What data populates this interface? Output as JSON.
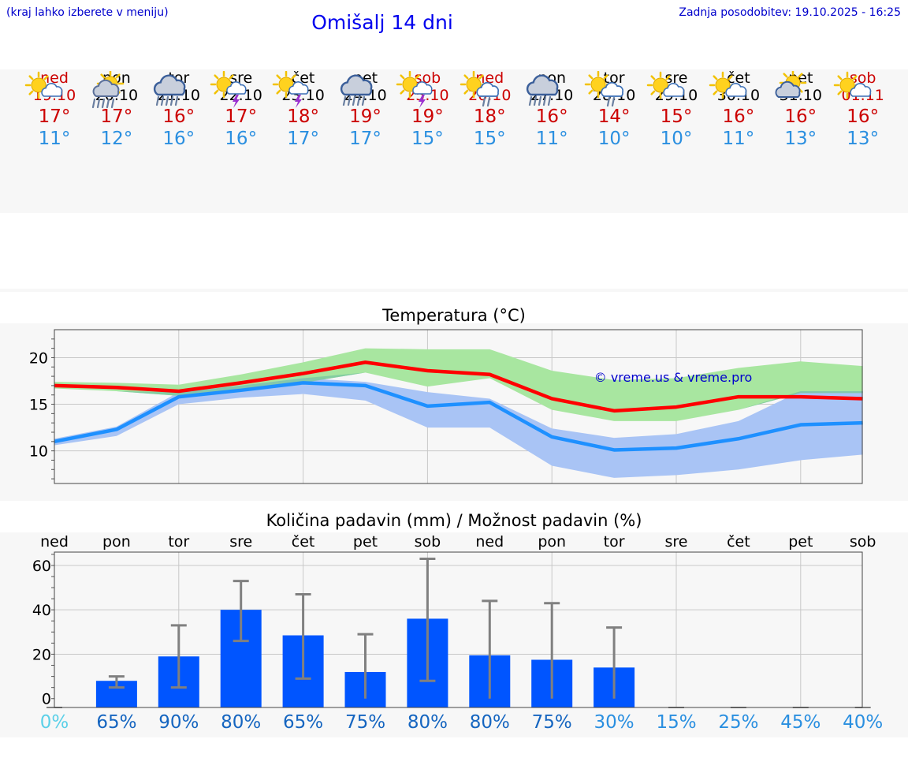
{
  "header": {
    "hint": "(kraj lahko izberete v meniju)",
    "title": "Omišalj 14 dni",
    "updated": "Zadnja posodobitev: 19.10.2025 - 16:25"
  },
  "forecast": [
    {
      "day": "ned",
      "date": "19.10",
      "weekend": true,
      "icon": "sun-cloud",
      "max": "17°",
      "min": "11°"
    },
    {
      "day": "pon",
      "date": "20.10",
      "weekend": false,
      "icon": "sun-cloud-rain",
      "max": "17°",
      "min": "12°"
    },
    {
      "day": "tor",
      "date": "21.10",
      "weekend": false,
      "icon": "cloud-rain",
      "max": "16°",
      "min": "16°"
    },
    {
      "day": "sre",
      "date": "22.10",
      "weekend": false,
      "icon": "sun-cloud-storm",
      "max": "17°",
      "min": "16°"
    },
    {
      "day": "čet",
      "date": "23.10",
      "weekend": false,
      "icon": "sun-cloud-storm",
      "max": "18°",
      "min": "17°"
    },
    {
      "day": "pet",
      "date": "24.10",
      "weekend": false,
      "icon": "cloud-rain",
      "max": "19°",
      "min": "17°"
    },
    {
      "day": "sob",
      "date": "25.10",
      "weekend": true,
      "icon": "sun-cloud-storm",
      "max": "19°",
      "min": "15°"
    },
    {
      "day": "ned",
      "date": "26.10",
      "weekend": true,
      "icon": "sun-cloud-light-rain",
      "max": "18°",
      "min": "15°"
    },
    {
      "day": "pon",
      "date": "27.10",
      "weekend": false,
      "icon": "cloud-rain",
      "max": "16°",
      "min": "11°"
    },
    {
      "day": "tor",
      "date": "28.10",
      "weekend": false,
      "icon": "sun-cloud-light-rain",
      "max": "14°",
      "min": "10°"
    },
    {
      "day": "sre",
      "date": "29.10",
      "weekend": false,
      "icon": "sun-cloud",
      "max": "15°",
      "min": "10°"
    },
    {
      "day": "čet",
      "date": "30.10",
      "weekend": false,
      "icon": "sun-cloud",
      "max": "16°",
      "min": "11°"
    },
    {
      "day": "pet",
      "date": "31.10",
      "weekend": false,
      "icon": "cloud-sun-behind",
      "max": "16°",
      "min": "13°"
    },
    {
      "day": "sob",
      "date": "01.11",
      "weekend": true,
      "icon": "sun-cloud",
      "max": "16°",
      "min": "13°"
    }
  ],
  "colors": {
    "max_line": "#ff0000",
    "min_line": "#1e90ff",
    "max_band": "#a8e6a0",
    "min_band": "#a9c4f5",
    "overlap_band": "#7cc8a0",
    "bar": "#0055ff",
    "error": "#808080",
    "pct_dark": "#1565c0",
    "pct_mid": "#2a8fe0",
    "pct_light": "#5bd0e8"
  },
  "chart_data": [
    {
      "type": "line",
      "title": "Temperatura (°C)",
      "watermark": "© vreme.us & vreme.pro",
      "ylim": [
        6.5,
        23
      ],
      "yticks": [
        10,
        15,
        20
      ],
      "x_days": 14,
      "series": [
        {
          "name": "max",
          "values": [
            17,
            16.8,
            16.4,
            17.3,
            18.3,
            19.5,
            18.6,
            18.2,
            15.6,
            14.3,
            14.7,
            15.8,
            15.8,
            15.6
          ]
        },
        {
          "name": "min",
          "values": [
            11.0,
            12.3,
            15.8,
            16.5,
            17.3,
            17.0,
            14.8,
            15.2,
            11.5,
            10.1,
            10.3,
            11.3,
            12.8,
            13.0
          ]
        }
      ],
      "bands": [
        {
          "name": "max_range",
          "upper": [
            17.4,
            17.3,
            17.1,
            18.2,
            19.5,
            21.0,
            20.9,
            20.9,
            18.6,
            17.6,
            17.8,
            18.9,
            19.6,
            19.1
          ],
          "lower": [
            16.7,
            16.4,
            15.9,
            16.5,
            17.3,
            18.4,
            16.9,
            17.8,
            14.4,
            13.2,
            13.2,
            14.4,
            16.2,
            16.2
          ]
        },
        {
          "name": "min_range",
          "upper": [
            11.3,
            12.6,
            16.3,
            17.0,
            17.8,
            17.4,
            16.3,
            15.6,
            12.4,
            11.4,
            11.8,
            13.2,
            16.4,
            16.4
          ],
          "lower": [
            10.6,
            11.6,
            15.0,
            15.7,
            16.1,
            15.4,
            12.5,
            12.5,
            8.4,
            7.1,
            7.4,
            8.0,
            9.0,
            9.6
          ]
        }
      ]
    },
    {
      "type": "bar",
      "title": "Količina padavin (mm) / Možnost padavin (%)",
      "categories": [
        "ned",
        "pon",
        "tor",
        "sre",
        "čet",
        "pet",
        "sob",
        "ned",
        "pon",
        "tor",
        "sre",
        "čet",
        "pet",
        "sob"
      ],
      "ylim": [
        -4,
        66
      ],
      "yticks": [
        0,
        20,
        40,
        60
      ],
      "values": [
        0,
        8,
        19,
        40,
        28.5,
        12,
        36,
        19.5,
        17.5,
        14,
        0,
        0,
        0,
        0
      ],
      "err_low": [
        0,
        5,
        5,
        26,
        9,
        0,
        8,
        0,
        0,
        0,
        0,
        0,
        0,
        0
      ],
      "err_high": [
        0,
        10,
        33,
        53,
        47,
        29,
        63,
        44,
        43,
        32,
        0,
        0,
        0,
        0
      ],
      "chance": [
        "0%",
        "65%",
        "90%",
        "80%",
        "65%",
        "75%",
        "80%",
        "80%",
        "75%",
        "30%",
        "15%",
        "25%",
        "45%",
        "40%"
      ]
    }
  ]
}
